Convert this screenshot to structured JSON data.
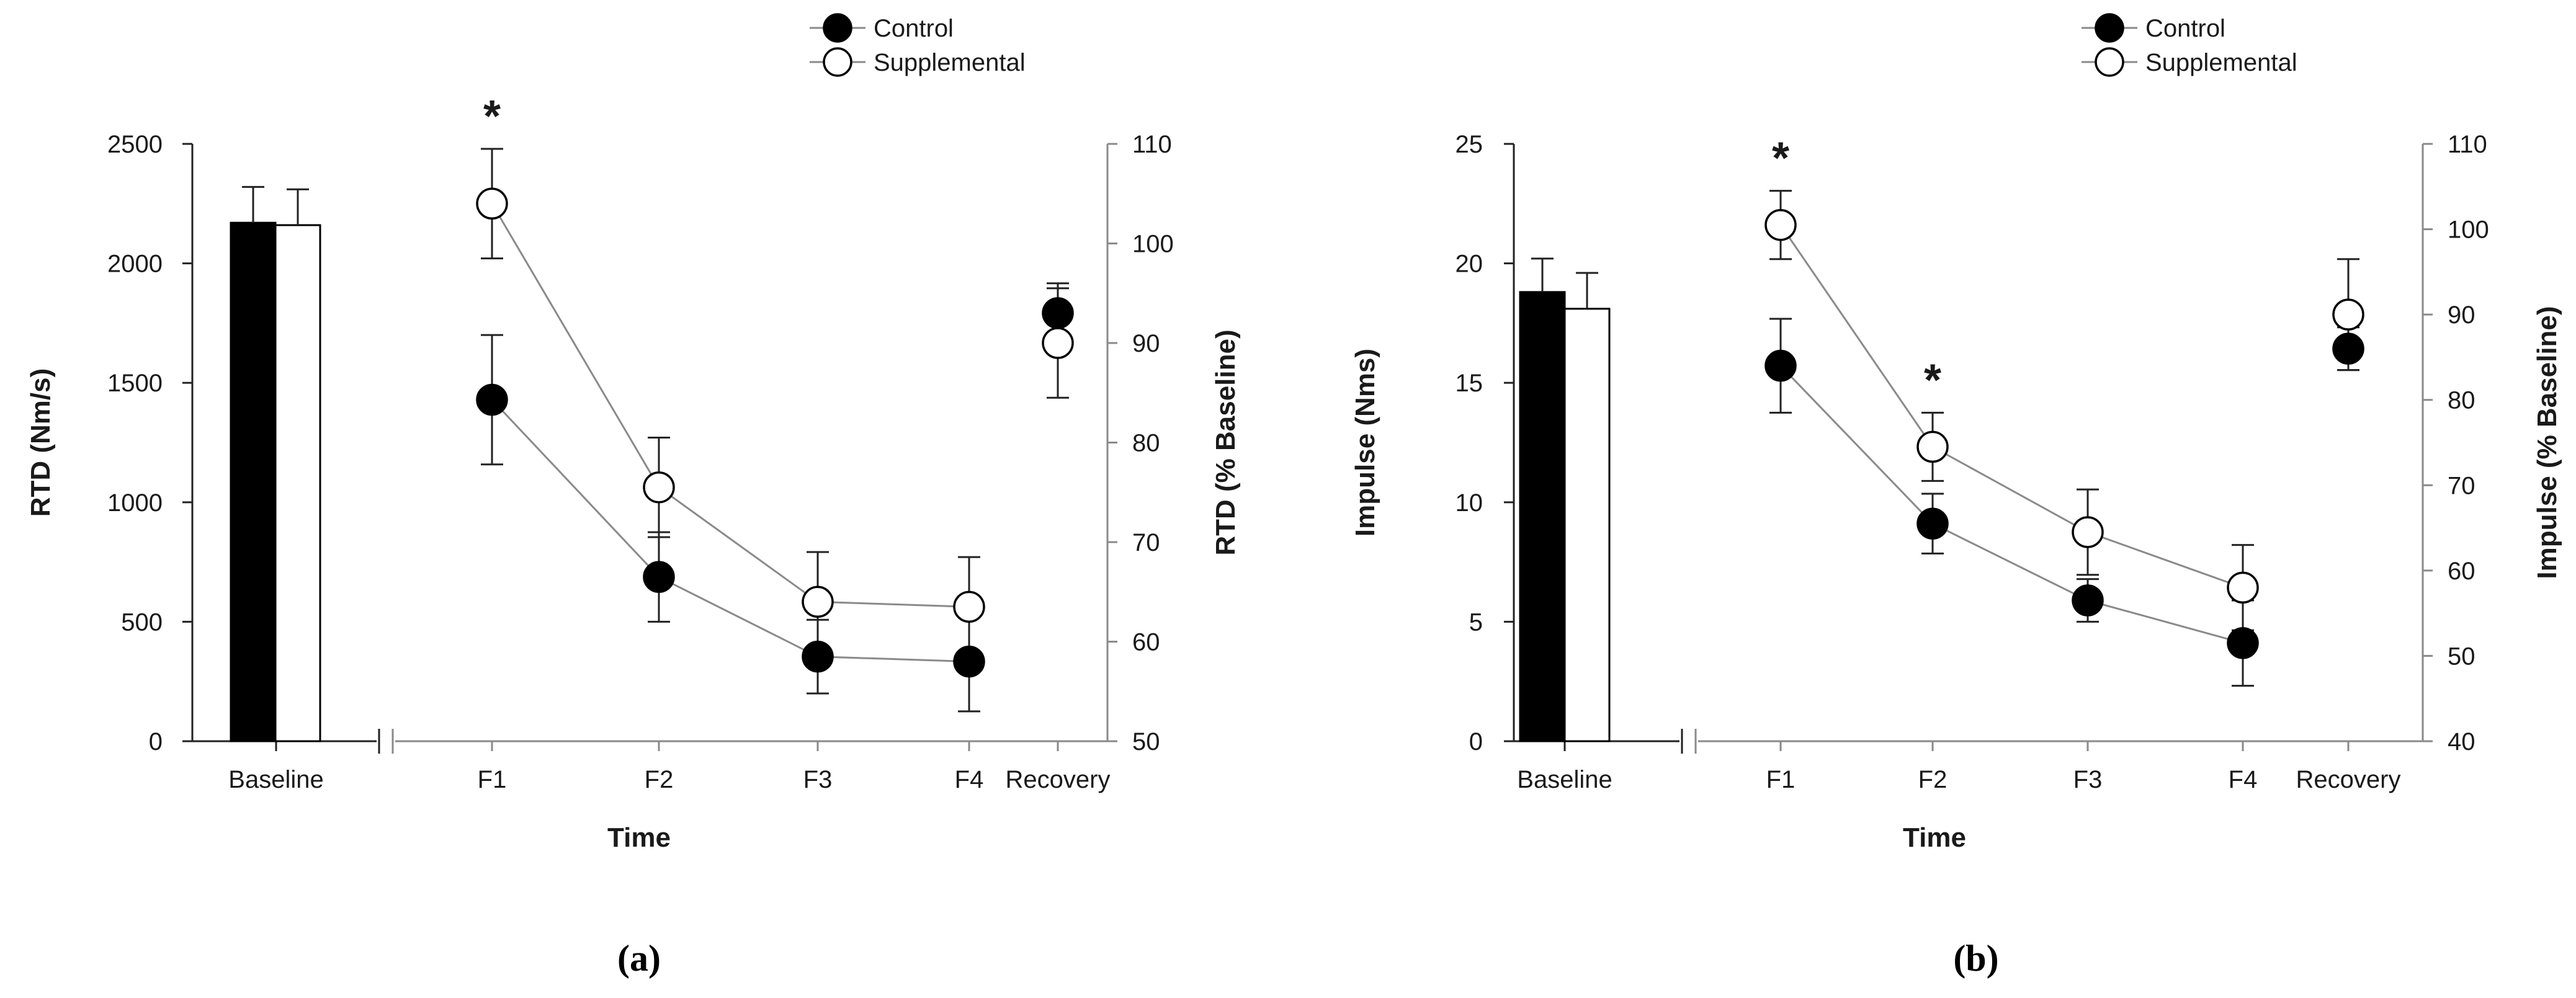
{
  "chart_data": [
    {
      "type": "bar+line",
      "panel_label": "(a)",
      "xlabel": "Time",
      "ylabel": "RTD (Nm/s)",
      "ylabel_right": "RTD (% Baseline)",
      "ylim": [
        0,
        2500
      ],
      "yticks": [
        "0",
        "500",
        "1000",
        "1500",
        "2000",
        "2500"
      ],
      "ylim_right": [
        50,
        110
      ],
      "yticks_right": [
        "50",
        "60",
        "70",
        "80",
        "90",
        "100",
        "110"
      ],
      "legend": [
        "Control",
        "Supplemental"
      ],
      "baseline_label": "Baseline",
      "baseline_bars": [
        {
          "name": "Control",
          "value": 2170,
          "err": 150,
          "color": "#000000"
        },
        {
          "name": "Supplemental",
          "value": 2160,
          "err": 150,
          "color": "#ffffff"
        }
      ],
      "categories": [
        "F1",
        "F2",
        "F3",
        "F4",
        "Recovery"
      ],
      "series": [
        {
          "name": "Control",
          "fill": "#000000",
          "values": [
            84.3,
            66.5,
            58.5,
            58.0,
            93.0
          ],
          "errors": [
            6.5,
            4.5,
            3.7,
            5.0,
            3.0
          ]
        },
        {
          "name": "Supplemental",
          "fill": "#ffffff",
          "values": [
            104.0,
            75.5,
            64.0,
            63.5,
            90.0
          ],
          "errors": [
            5.5,
            5.0,
            5.0,
            5.0,
            5.5
          ]
        }
      ],
      "connect_points": 4,
      "significance": [
        {
          "category": "F1",
          "mark": "*"
        }
      ]
    },
    {
      "type": "bar+line",
      "panel_label": "(b)",
      "xlabel": "Time",
      "ylabel": "Impulse (Nms)",
      "ylabel_right": "Impulse (% Baseline)",
      "ylim": [
        0,
        25
      ],
      "yticks": [
        "0",
        "5",
        "10",
        "15",
        "20",
        "25"
      ],
      "ylim_right": [
        40,
        110
      ],
      "yticks_right": [
        "40",
        "50",
        "60",
        "70",
        "80",
        "90",
        "100",
        "110"
      ],
      "legend": [
        "Control",
        "Supplemental"
      ],
      "baseline_label": "Baseline",
      "baseline_bars": [
        {
          "name": "Control",
          "value": 18.8,
          "err": 1.4,
          "color": "#000000"
        },
        {
          "name": "Supplemental",
          "value": 18.1,
          "err": 1.5,
          "color": "#ffffff"
        }
      ],
      "categories": [
        "F1",
        "F2",
        "F3",
        "F4",
        "Recovery"
      ],
      "series": [
        {
          "name": "Control",
          "fill": "#000000",
          "values": [
            84.0,
            65.5,
            56.5,
            51.5,
            86.0
          ],
          "errors": [
            5.5,
            3.5,
            2.5,
            5.0,
            2.5
          ]
        },
        {
          "name": "Supplemental",
          "fill": "#ffffff",
          "values": [
            100.5,
            74.5,
            64.5,
            58.0,
            90.0
          ],
          "errors": [
            4.0,
            4.0,
            5.0,
            5.0,
            6.5
          ]
        }
      ],
      "connect_points": 4,
      "significance": [
        {
          "category": "F1",
          "mark": "*"
        },
        {
          "category": "F2",
          "mark": "*"
        }
      ]
    }
  ]
}
